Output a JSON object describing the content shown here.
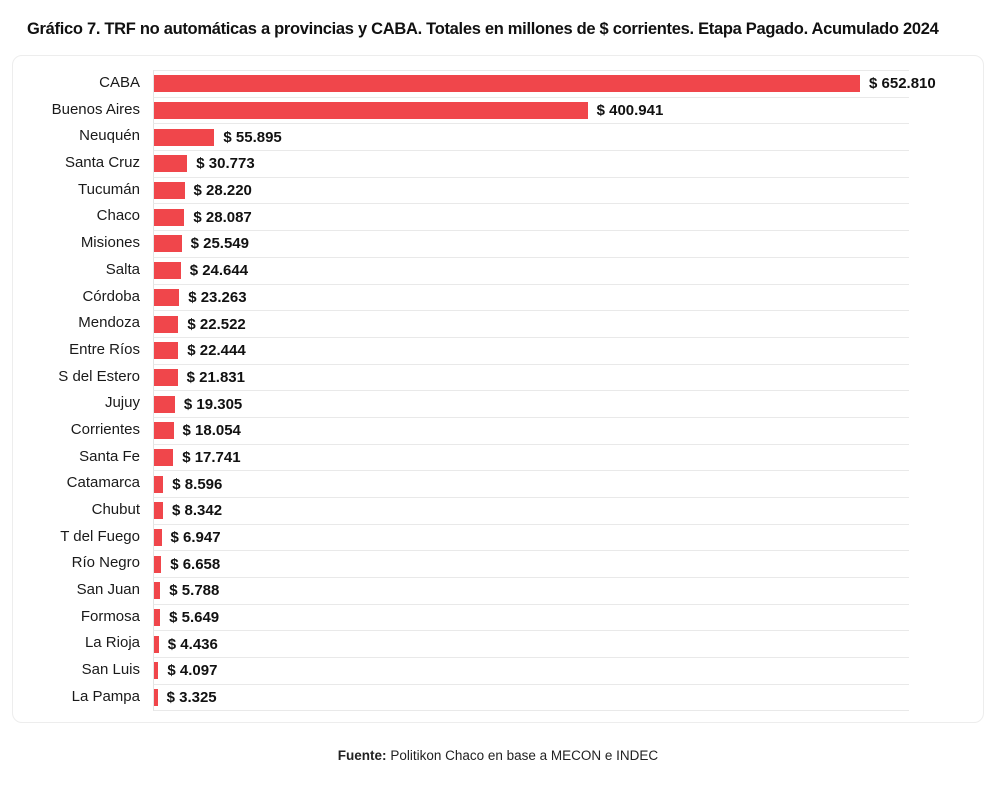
{
  "page": {
    "title": "Gráfico 7. TRF no automáticas a provincias y CABA. Totales en millones de $ corrientes. Etapa Pagado. Acumulado 2024",
    "source_prefix": "Fuente:",
    "source_text": "Politikon Chaco en base a MECON e INDEC"
  },
  "colors": {
    "bar": "#f0464b",
    "separator": "#e9e9e9",
    "axis_line": "#e3e3e3",
    "card_border": "#ededed",
    "text": "#1a1a1a"
  },
  "chart_data": {
    "type": "bar",
    "orientation": "horizontal",
    "title": "Gráfico 7. TRF no automáticas a provincias y CABA. Totales en millones de $ corrientes. Etapa Pagado. Acumulado 2024",
    "xlabel": "",
    "ylabel": "",
    "xlim": [
      0,
      652810
    ],
    "grid": "row-separators",
    "legend": "none",
    "categories": [
      "CABA",
      "Buenos Aires",
      "Neuquén",
      "Santa Cruz",
      "Tucumán",
      "Chaco",
      "Misiones",
      "Salta",
      "Córdoba",
      "Mendoza",
      "Entre Ríos",
      "S del Estero",
      "Jujuy",
      "Corrientes",
      "Santa Fe",
      "Catamarca",
      "Chubut",
      "T del Fuego",
      "Río Negro",
      "San Juan",
      "Formosa",
      "La Rioja",
      "San Luis",
      "La Pampa"
    ],
    "values": [
      652810,
      400941,
      55895,
      30773,
      28220,
      28087,
      25549,
      24644,
      23263,
      22522,
      22444,
      21831,
      19305,
      18054,
      17741,
      8596,
      8342,
      6947,
      6658,
      5788,
      5649,
      4436,
      4097,
      3325
    ],
    "value_labels": [
      "$ 652.810",
      "$ 400.941",
      "$ 55.895",
      "$ 30.773",
      "$ 28.220",
      "$ 28.087",
      "$ 25.549",
      "$ 24.644",
      "$ 23.263",
      "$ 22.522",
      "$ 22.444",
      "$ 21.831",
      "$ 19.305",
      "$ 18.054",
      "$ 17.741",
      "$ 8.596",
      "$ 8.342",
      "$ 6.947",
      "$ 6.658",
      "$ 5.788",
      "$ 5.649",
      "$ 4.436",
      "$ 4.097",
      "$ 3.325"
    ]
  }
}
